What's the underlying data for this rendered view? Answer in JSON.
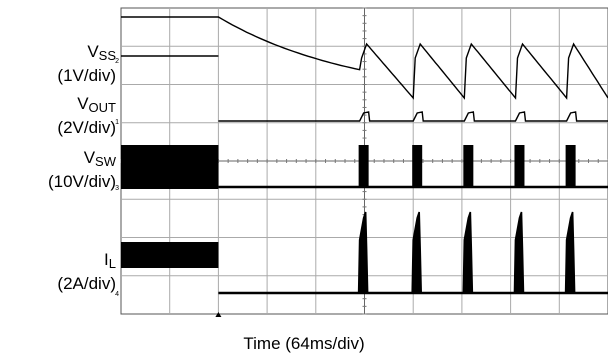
{
  "chart_data": {
    "type": "line",
    "title": "",
    "xlabel": "Time (64ms/div)",
    "grid": true,
    "divisions": {
      "x": 10,
      "y": 8
    },
    "channels": [
      {
        "marker": "2",
        "name": "V",
        "sub": "SS",
        "scale": "(1V/div)"
      },
      {
        "marker": "1",
        "name": "V",
        "sub": "OUT",
        "scale": "(2V/div)"
      },
      {
        "marker": "3",
        "name": "V",
        "sub": "SW",
        "scale": "(10V/div)"
      },
      {
        "marker": "4",
        "name": "I",
        "sub": "L",
        "scale": "(2A/div)"
      }
    ],
    "events": {
      "fault_time_div": 2.0,
      "hiccup_restart_times_div": [
        4.9,
        6.0,
        7.05,
        8.1,
        9.15
      ]
    }
  }
}
